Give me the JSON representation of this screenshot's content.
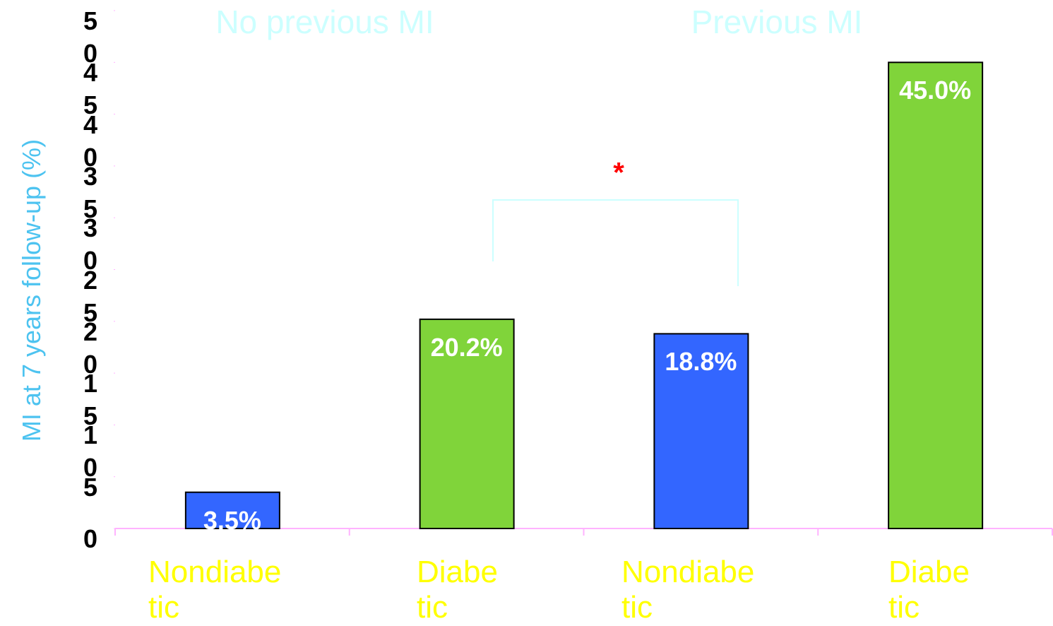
{
  "chart_data": {
    "type": "bar",
    "y_label": "MI at 7 years follow-up (%)",
    "group_labels": [
      "No previous MI",
      "Previous MI"
    ],
    "annotation": "*",
    "categories": [
      "Nondiabetic",
      "Diabetic",
      "Nondiabetic",
      "Diabetic"
    ],
    "values": [
      3.5,
      20.2,
      18.8,
      45.0
    ],
    "value_labels": [
      "3.5%",
      "20.2%",
      "18.8%",
      "45.0%"
    ],
    "colors": [
      "#3366ff",
      "#80d43a",
      "#3366ff",
      "#80d43a"
    ],
    "ylim": [
      0,
      50
    ],
    "yticks": [
      0,
      5,
      10,
      15,
      20,
      25,
      30,
      35,
      40,
      45,
      50
    ]
  }
}
